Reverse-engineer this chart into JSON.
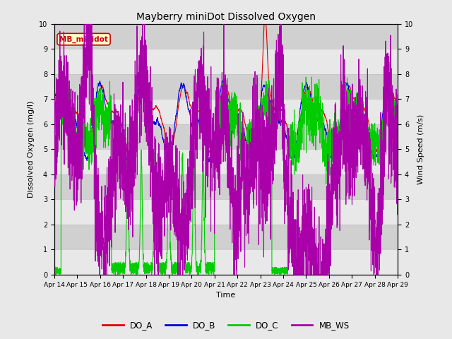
{
  "title": "Mayberry miniDot Dissolved Oxygen",
  "xlabel": "Time",
  "ylabel_left": "Dissolved Oxygen (mg/l)",
  "ylabel_right": "Wind Speed (m/s)",
  "ylim": [
    0.0,
    10.0
  ],
  "yticks": [
    0.0,
    1.0,
    2.0,
    3.0,
    4.0,
    5.0,
    6.0,
    7.0,
    8.0,
    9.0,
    10.0
  ],
  "xtick_labels": [
    "Apr 14",
    "Apr 15",
    "Apr 16",
    "Apr 17",
    "Apr 18",
    "Apr 19",
    "Apr 20",
    "Apr 21",
    "Apr 22",
    "Apr 23",
    "Apr 24",
    "Apr 25",
    "Apr 26",
    "Apr 27",
    "Apr 28",
    "Apr 29"
  ],
  "colors": {
    "DO_A": "#dd0000",
    "DO_B": "#0000dd",
    "DO_C": "#00cc00",
    "MB_WS": "#aa00aa"
  },
  "annotation_box_text": "MB_minidot",
  "annotation_box_color": "#cc0000",
  "annotation_box_bg": "#ffffcc",
  "background_color": "#e8e8e8",
  "plot_bg_light": "#e8e8e8",
  "plot_bg_dark": "#d0d0d0",
  "grid_color": "#c0c0c0",
  "n_points": 3000,
  "seed": 42
}
